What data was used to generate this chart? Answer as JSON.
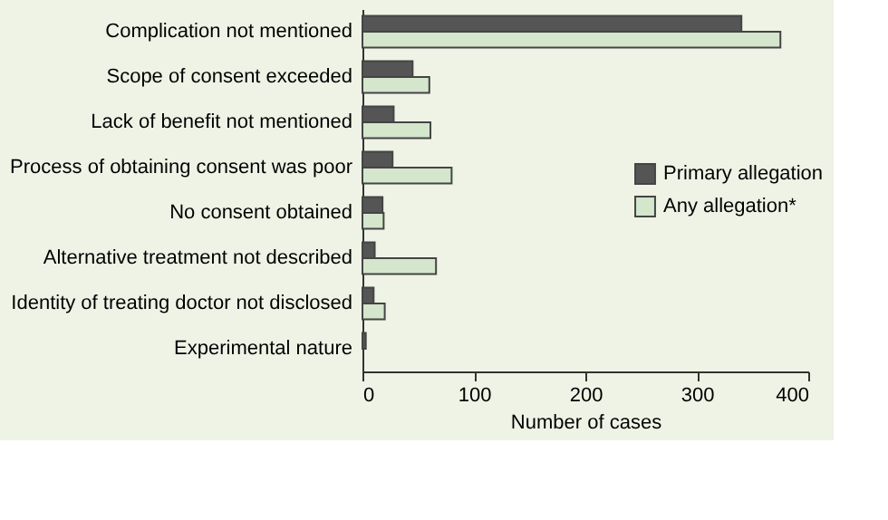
{
  "chart_data": {
    "type": "bar",
    "orientation": "horizontal",
    "xlabel": "Number of cases",
    "categories": [
      "Complication not mentioned",
      "Scope of consent exceeded",
      "Lack of benefit not mentioned",
      "Process of obtaining consent was poor",
      "No consent obtained",
      "Alternative treatment not described",
      "Identity of treating doctor not disclosed",
      "Experimental nature"
    ],
    "series": [
      {
        "name": "Primary allegation",
        "color": "#555555",
        "values": [
          340,
          45,
          28,
          27,
          18,
          11,
          10,
          3
        ]
      },
      {
        "name": "Any allegation*",
        "color": "#d4e6cc",
        "values": [
          375,
          60,
          61,
          80,
          19,
          66,
          20,
          null
        ]
      }
    ],
    "xlim": [
      0,
      400
    ],
    "xticks": [
      0,
      100,
      200,
      300,
      400
    ],
    "grid": false,
    "legend": "right"
  }
}
